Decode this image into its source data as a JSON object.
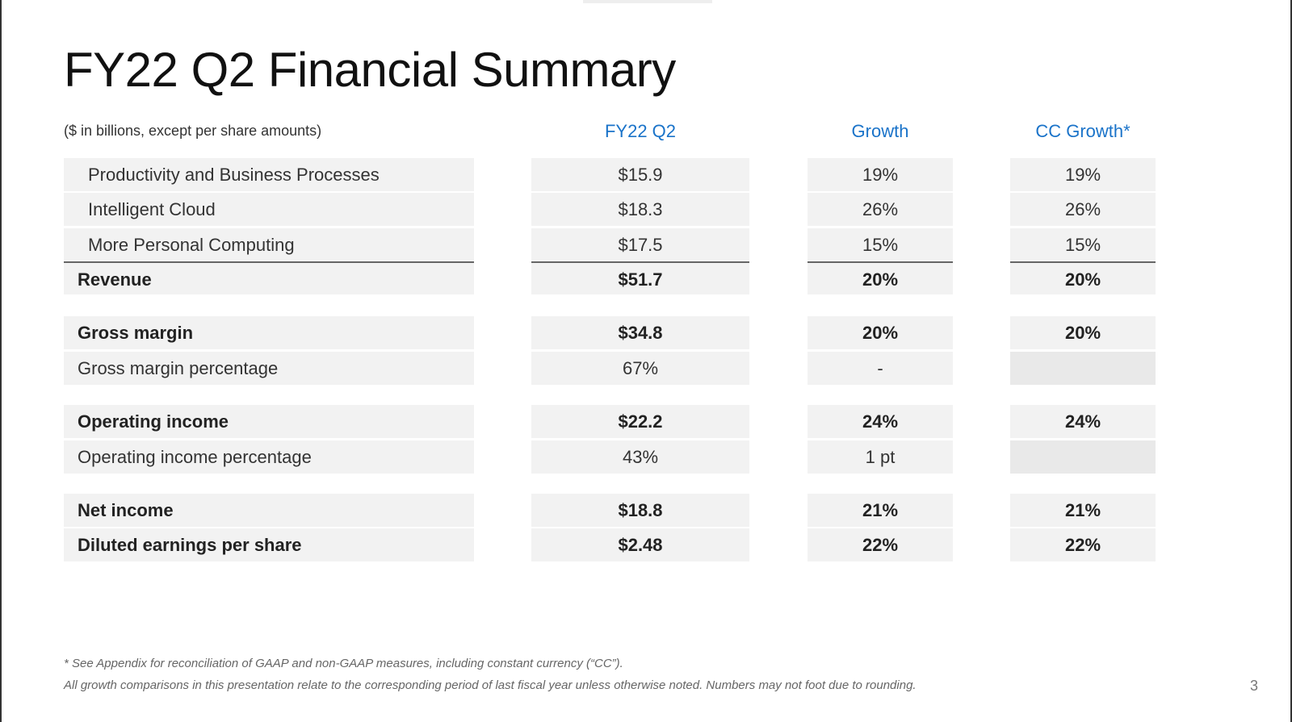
{
  "title": "FY22 Q2 Financial Summary",
  "units": "($ in billions, except per share amounts)",
  "columns": [
    "FY22 Q2",
    "Growth",
    "CC Growth*"
  ],
  "rows": [
    {
      "label": "Productivity and Business Processes",
      "v": "$15.9",
      "g": "19%",
      "cc": "19%"
    },
    {
      "label": "Intelligent Cloud",
      "v": "$18.3",
      "g": "26%",
      "cc": "26%"
    },
    {
      "label": "More Personal Computing",
      "v": "$17.5",
      "g": "15%",
      "cc": "15%"
    },
    {
      "label": "Revenue",
      "v": "$51.7",
      "g": "20%",
      "cc": "20%"
    },
    {
      "label": "Gross margin",
      "v": "$34.8",
      "g": "20%",
      "cc": "20%"
    },
    {
      "label": "Gross margin percentage",
      "v": "67%",
      "g": "-",
      "cc": ""
    },
    {
      "label": "Operating income",
      "v": "$22.2",
      "g": "24%",
      "cc": "24%"
    },
    {
      "label": "Operating income percentage",
      "v": "43%",
      "g": "1 pt",
      "cc": ""
    },
    {
      "label": "Net income",
      "v": "$18.8",
      "g": "21%",
      "cc": "21%"
    },
    {
      "label": "Diluted earnings per share",
      "v": "$2.48",
      "g": "22%",
      "cc": "22%"
    }
  ],
  "footnotes": [
    "* See Appendix for reconciliation of GAAP and non-GAAP measures, including constant currency (“CC”).",
    "All growth comparisons in this presentation relate to the corresponding period of last fiscal year unless otherwise noted. Numbers may not foot due to rounding."
  ],
  "page_number": "3",
  "colors": {
    "header": "#1a73c9",
    "cell": "#f2f2f2"
  }
}
